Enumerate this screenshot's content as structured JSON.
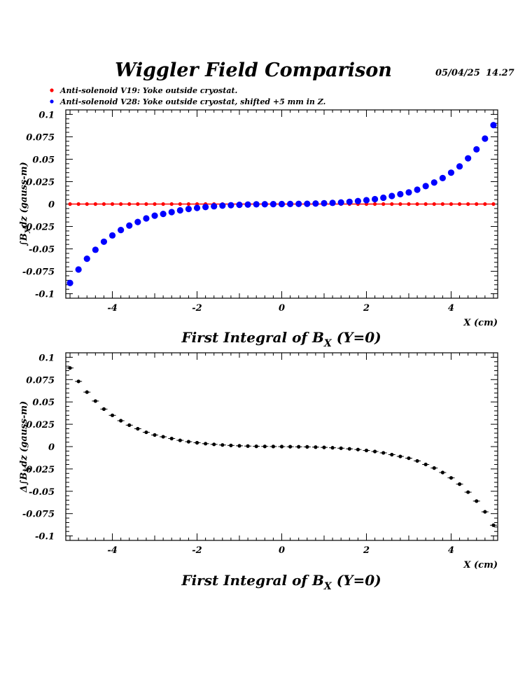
{
  "header": {
    "title": "Wiggler Field Comparison",
    "date": "05/04/25",
    "time": "14.27"
  },
  "legend": [
    {
      "label": "Anti-solenoid V19: Yoke outside cryostat.",
      "color": "#ff0000"
    },
    {
      "label": "Anti-solenoid V28: Yoke outside cryostat, shifted +5 mm in Z.",
      "color": "#0000ff"
    }
  ],
  "chart_data": [
    {
      "type": "scatter",
      "title": "First Integral of B_X (Y=0)",
      "caption_parts": {
        "pre": "First Integral of B",
        "sub": "X",
        "post": " (Y=0)"
      },
      "xlabel": "X (cm)",
      "ylabel_parts": {
        "pre": "∫B",
        "sub": "X",
        "post": "dz  (gauss-m)"
      },
      "xlim": [
        -5.1,
        5.1
      ],
      "ylim": [
        -0.105,
        0.105
      ],
      "xticks": [
        -4,
        -2,
        0,
        2,
        4
      ],
      "yticks": [
        0.1,
        0.075,
        0.05,
        0.025,
        0,
        -0.025,
        -0.05,
        -0.075,
        -0.1
      ],
      "ytick_labels": [
        "0.1",
        "0.075",
        "0.05",
        "0.025",
        "0",
        "-0.025",
        "-0.05",
        "-0.075",
        "-0.1"
      ],
      "xtick_labels": [
        "-4",
        "-2",
        "0",
        "2",
        "4"
      ],
      "x": [
        -5.0,
        -4.8,
        -4.6,
        -4.4,
        -4.2,
        -4.0,
        -3.8,
        -3.6,
        -3.4,
        -3.2,
        -3.0,
        -2.8,
        -2.6,
        -2.4,
        -2.2,
        -2.0,
        -1.8,
        -1.6,
        -1.4,
        -1.2,
        -1.0,
        -0.8,
        -0.6,
        -0.4,
        -0.2,
        0.0,
        0.2,
        0.4,
        0.6,
        0.8,
        1.0,
        1.2,
        1.4,
        1.6,
        1.8,
        2.0,
        2.2,
        2.4,
        2.6,
        2.8,
        3.0,
        3.2,
        3.4,
        3.6,
        3.8,
        4.0,
        4.2,
        4.4,
        4.6,
        4.8,
        5.0
      ],
      "series": [
        {
          "name": "Anti-solenoid V19",
          "color": "#ff0000",
          "marker_size": 2.6,
          "values": [
            0,
            0,
            0,
            0,
            0,
            0,
            0,
            0,
            0,
            0,
            0,
            0,
            0,
            0,
            0,
            0,
            0,
            0,
            0,
            0,
            0,
            0,
            0,
            0,
            0,
            0,
            0,
            0,
            0,
            0,
            0,
            0,
            0,
            0,
            0,
            0,
            0,
            0,
            0,
            0,
            0,
            0,
            0,
            0,
            0,
            0,
            0,
            0,
            0,
            0,
            0
          ]
        },
        {
          "name": "Anti-solenoid V28",
          "color": "#0000ff",
          "marker_size": 4.6,
          "values": [
            -0.088,
            -0.073,
            -0.061,
            -0.051,
            -0.042,
            -0.035,
            -0.029,
            -0.024,
            -0.02,
            -0.016,
            -0.013,
            -0.011,
            -0.009,
            -0.007,
            -0.0055,
            -0.0043,
            -0.0033,
            -0.0025,
            -0.0018,
            -0.0013,
            -0.0009,
            -0.0006,
            -0.0003,
            -0.0002,
            -0.0001,
            0.0,
            0.0001,
            0.0002,
            0.0003,
            0.0006,
            0.0009,
            0.0013,
            0.0018,
            0.0025,
            0.0033,
            0.0043,
            0.0055,
            0.007,
            0.009,
            0.011,
            0.013,
            0.016,
            0.02,
            0.024,
            0.029,
            0.035,
            0.042,
            0.051,
            0.061,
            0.073,
            0.088
          ]
        }
      ]
    },
    {
      "type": "scatter",
      "title": "First Integral of B_X (Y=0)",
      "caption_parts": {
        "pre": "First Integral of B",
        "sub": "X",
        "post": " (Y=0)"
      },
      "xlabel": "X (cm)",
      "ylabel_parts": {
        "pre": "Δ∫B",
        "sub": "X",
        "post": "dz  (gauss-m)"
      },
      "xlim": [
        -5.1,
        5.1
      ],
      "ylim": [
        -0.105,
        0.105
      ],
      "xticks": [
        -4,
        -2,
        0,
        2,
        4
      ],
      "yticks": [
        0.1,
        0.075,
        0.05,
        0.025,
        0,
        -0.025,
        -0.05,
        -0.075,
        -0.1
      ],
      "ytick_labels": [
        "0.1",
        "0.075",
        "0.05",
        "0.025",
        "0",
        "-0.025",
        "-0.05",
        "-0.075",
        "-0.1"
      ],
      "xtick_labels": [
        "-4",
        "-2",
        "0",
        "2",
        "4"
      ],
      "x": [
        -5.0,
        -4.8,
        -4.6,
        -4.4,
        -4.2,
        -4.0,
        -3.8,
        -3.6,
        -3.4,
        -3.2,
        -3.0,
        -2.8,
        -2.6,
        -2.4,
        -2.2,
        -2.0,
        -1.8,
        -1.6,
        -1.4,
        -1.2,
        -1.0,
        -0.8,
        -0.6,
        -0.4,
        -0.2,
        0.0,
        0.2,
        0.4,
        0.6,
        0.8,
        1.0,
        1.2,
        1.4,
        1.6,
        1.8,
        2.0,
        2.2,
        2.4,
        2.6,
        2.8,
        3.0,
        3.2,
        3.4,
        3.6,
        3.8,
        4.0,
        4.2,
        4.4,
        4.6,
        4.8,
        5.0
      ],
      "series": [
        {
          "name": "Difference",
          "color": "#000000",
          "marker_size": 2.6,
          "values": [
            0.088,
            0.073,
            0.061,
            0.051,
            0.042,
            0.035,
            0.029,
            0.024,
            0.02,
            0.016,
            0.013,
            0.011,
            0.009,
            0.007,
            0.0055,
            0.0043,
            0.0033,
            0.0025,
            0.0018,
            0.0013,
            0.0009,
            0.0006,
            0.0003,
            0.0002,
            0.0001,
            0.0,
            -0.0001,
            -0.0002,
            -0.0003,
            -0.0006,
            -0.0009,
            -0.0013,
            -0.0018,
            -0.0025,
            -0.0033,
            -0.0043,
            -0.0055,
            -0.007,
            -0.009,
            -0.011,
            -0.013,
            -0.016,
            -0.02,
            -0.024,
            -0.029,
            -0.035,
            -0.042,
            -0.051,
            -0.061,
            -0.073,
            -0.088
          ]
        }
      ]
    }
  ]
}
